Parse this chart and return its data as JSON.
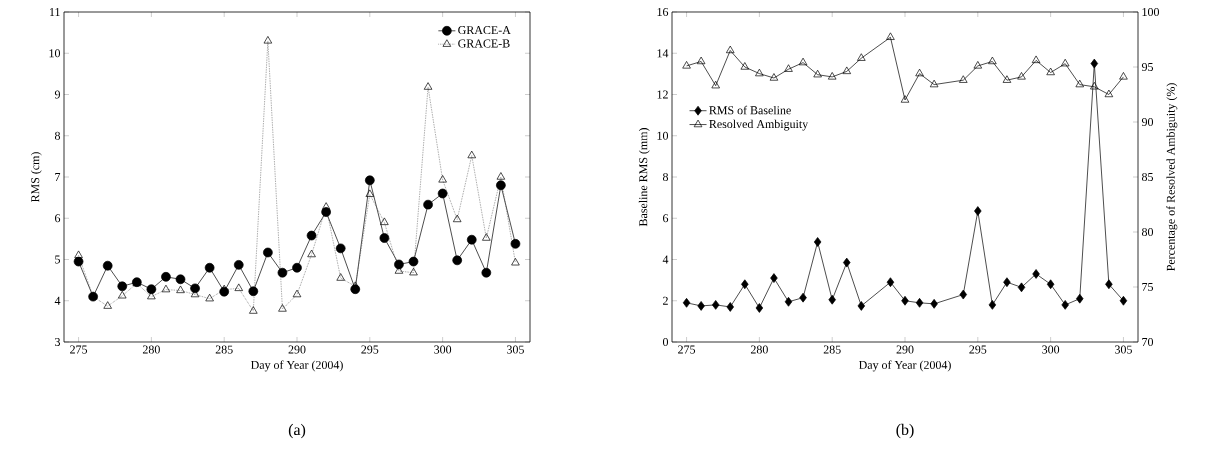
{
  "chart_data": [
    {
      "type": "line",
      "xlabel": "Day of Year (2004)",
      "ylabel": "RMS (cm)",
      "annotations": [
        "(a)"
      ],
      "x": [
        275,
        276,
        277,
        278,
        279,
        280,
        281,
        282,
        283,
        284,
        285,
        286,
        287,
        288,
        289,
        290,
        291,
        292,
        293,
        294,
        295,
        296,
        297,
        298,
        299,
        300,
        301,
        302,
        303,
        304,
        305
      ],
      "series": [
        {
          "name": "GRACE-A",
          "color": "#000000",
          "marker": "circle",
          "line_style": "solid",
          "values": [
            4.95,
            4.1,
            4.85,
            4.35,
            4.45,
            4.28,
            4.58,
            4.52,
            4.3,
            4.8,
            4.22,
            4.87,
            4.23,
            5.17,
            4.68,
            4.8,
            5.58,
            6.15,
            5.27,
            4.28,
            6.92,
            5.52,
            4.88,
            4.95,
            6.33,
            6.6,
            4.98,
            5.48,
            4.68,
            6.8,
            5.38
          ]
        },
        {
          "name": "GRACE-B",
          "color": "#555555",
          "marker": "triangle",
          "line_style": "dotted",
          "values": [
            5.1,
            4.1,
            3.87,
            4.12,
            4.42,
            4.1,
            4.27,
            4.25,
            4.15,
            4.05,
            4.27,
            4.3,
            3.75,
            10.3,
            3.8,
            4.15,
            5.12,
            6.27,
            4.55,
            4.35,
            6.58,
            5.9,
            4.72,
            4.68,
            9.18,
            6.93,
            5.97,
            7.52,
            5.52,
            7.0,
            4.92
          ]
        }
      ],
      "xlim": [
        274,
        306
      ],
      "xticks": [
        275,
        280,
        285,
        290,
        295,
        300,
        305
      ],
      "ylim": [
        3,
        11
      ],
      "yticks": [
        3,
        4,
        5,
        6,
        7,
        8,
        9,
        10,
        11
      ],
      "legend": "top right",
      "grid": false
    },
    {
      "type": "line",
      "xlabel": "Day of Year (2004)",
      "ylabel": "Baseline RMS (mm)",
      "y2label": "Percentage of Resolved Ambiguity (%)",
      "annotations": [
        "(b)"
      ],
      "series": [
        {
          "name": "RMS of Baseline",
          "color": "#000000",
          "marker": "diamond",
          "line_style": "solid",
          "x": [
            275,
            276,
            277,
            278,
            279,
            280,
            281,
            282,
            283,
            284,
            285,
            286,
            287,
            289,
            290,
            291,
            292,
            294,
            295,
            296,
            297,
            298,
            299,
            300,
            301,
            302,
            303,
            304,
            305
          ],
          "values": [
            1.9,
            1.75,
            1.8,
            1.7,
            2.8,
            1.65,
            3.1,
            1.95,
            2.15,
            4.85,
            2.05,
            3.85,
            1.75,
            2.9,
            2.0,
            1.9,
            1.85,
            2.3,
            6.35,
            1.8,
            2.9,
            2.65,
            3.3,
            2.8,
            1.8,
            2.1,
            13.5,
            2.8,
            2.0
          ]
        },
        {
          "name": "Resolved Ambiguity",
          "color": "#000000",
          "marker": "triangle",
          "line_style": "solid",
          "axis": "y2",
          "x": [
            275,
            276,
            277,
            278,
            279,
            280,
            281,
            282,
            283,
            284,
            285,
            286,
            287,
            289,
            290,
            291,
            292,
            294,
            295,
            296,
            297,
            298,
            299,
            300,
            301,
            302,
            303,
            304,
            305
          ],
          "values": [
            95.1,
            95.5,
            93.3,
            96.5,
            95.0,
            94.4,
            94.0,
            94.8,
            95.4,
            94.3,
            94.1,
            94.6,
            95.8,
            97.7,
            92.0,
            94.4,
            93.4,
            93.8,
            95.1,
            95.5,
            93.8,
            94.1,
            95.6,
            94.5,
            95.3,
            93.4,
            93.2,
            92.5,
            94.1
          ]
        }
      ],
      "xlim": [
        274,
        306
      ],
      "xticks": [
        275,
        280,
        285,
        290,
        295,
        300,
        305
      ],
      "ylim": [
        0,
        16
      ],
      "yticks": [
        0,
        2,
        4,
        6,
        8,
        10,
        12,
        14,
        16
      ],
      "y2lim": [
        70,
        100
      ],
      "y2ticks": [
        70,
        75,
        80,
        85,
        90,
        95,
        100
      ],
      "legend": "left",
      "grid": false
    }
  ]
}
